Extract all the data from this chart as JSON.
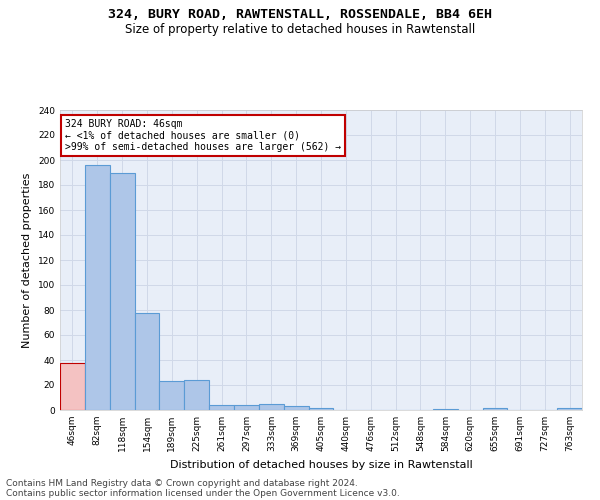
{
  "title1": "324, BURY ROAD, RAWTENSTALL, ROSSENDALE, BB4 6EH",
  "title2": "Size of property relative to detached houses in Rawtenstall",
  "xlabel": "Distribution of detached houses by size in Rawtenstall",
  "ylabel": "Number of detached properties",
  "footer1": "Contains HM Land Registry data © Crown copyright and database right 2024.",
  "footer2": "Contains public sector information licensed under the Open Government Licence v3.0.",
  "annotation_title": "324 BURY ROAD: 46sqm",
  "annotation_line1": "← <1% of detached houses are smaller (0)",
  "annotation_line2": ">99% of semi-detached houses are larger (562) →",
  "bar_values": [
    38,
    196,
    190,
    78,
    23,
    24,
    4,
    4,
    5,
    3,
    2,
    0,
    0,
    0,
    0,
    1,
    0,
    2,
    0,
    0,
    2
  ],
  "bar_labels": [
    "46sqm",
    "82sqm",
    "118sqm",
    "154sqm",
    "189sqm",
    "225sqm",
    "261sqm",
    "297sqm",
    "333sqm",
    "369sqm",
    "405sqm",
    "440sqm",
    "476sqm",
    "512sqm",
    "548sqm",
    "584sqm",
    "620sqm",
    "655sqm",
    "691sqm",
    "727sqm",
    "763sqm"
  ],
  "bar_color": "#aec6e8",
  "bar_edge_color": "#5b9bd5",
  "highlight_bar_index": 0,
  "highlight_color": "#f4c2c2",
  "highlight_edge_color": "#c00000",
  "annotation_box_color": "#ffffff",
  "annotation_border_color": "#c00000",
  "ylim": [
    0,
    240
  ],
  "yticks": [
    0,
    20,
    40,
    60,
    80,
    100,
    120,
    140,
    160,
    180,
    200,
    220,
    240
  ],
  "grid_color": "#d0d8e8",
  "bg_color": "#e8eef8",
  "title_fontsize": 9.5,
  "subtitle_fontsize": 8.5,
  "axis_label_fontsize": 8,
  "tick_fontsize": 6.5,
  "footer_fontsize": 6.5,
  "annotation_fontsize": 7.0
}
